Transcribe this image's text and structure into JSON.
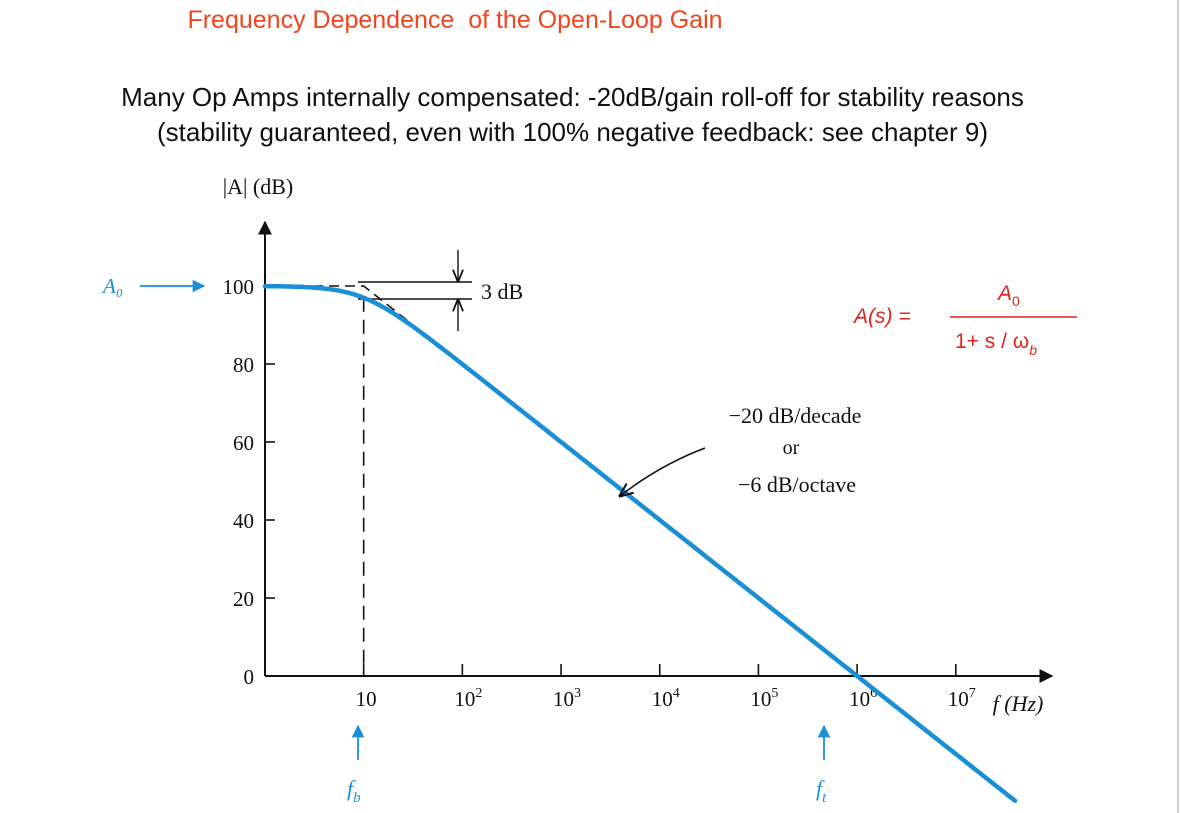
{
  "slide": {
    "title": "Frequency Dependence  of the Open-Loop Gain",
    "subtitle_line1": "Many Op Amps internally compensated: -20dB/gain roll-off for stability reasons",
    "subtitle_line2": "(stability guaranteed, even with 100% negative feedback: see chapter 9)"
  },
  "colors": {
    "title": "#f0451e",
    "curve": "#1a8fd6",
    "formula": "#e0231c",
    "text": "#111111"
  },
  "chart_data": {
    "type": "line",
    "ylabel": "|A| (dB)",
    "xlabel": "f (Hz)",
    "xscale": "log",
    "xlim_log10": [
      0,
      7.6
    ],
    "ylim": [
      0,
      100
    ],
    "yticks": [
      0,
      20,
      40,
      60,
      80,
      100
    ],
    "ytick_labels": [
      "0",
      "20",
      "40",
      "60",
      "80",
      "100"
    ],
    "xticks": [
      {
        "base": "10",
        "exp": ""
      },
      {
        "base": "10",
        "exp": "2"
      },
      {
        "base": "10",
        "exp": "3"
      },
      {
        "base": "10",
        "exp": "4"
      },
      {
        "base": "10",
        "exp": "5"
      },
      {
        "base": "10",
        "exp": "6"
      },
      {
        "base": "10",
        "exp": "7"
      }
    ],
    "A0_dB": 100,
    "f_b_Hz": 10,
    "f_t_Hz": 1000000,
    "series": [
      {
        "name": "",
        "color": "#1a8fd6"
      }
    ],
    "annotations": {
      "A0_label": "A₀",
      "three_db": "3 dB",
      "slope_line1": "−20 dB/decade",
      "slope_or": "or",
      "slope_line2": "−6 dB/octave",
      "fb_label": "f",
      "fb_sub": "b",
      "ft_label": "f",
      "ft_sub": "t"
    },
    "formula": {
      "lhs": "A(s) =",
      "num": "A",
      "num_sub": "0",
      "den": "1+ s / ω",
      "den_sub": "b"
    }
  }
}
